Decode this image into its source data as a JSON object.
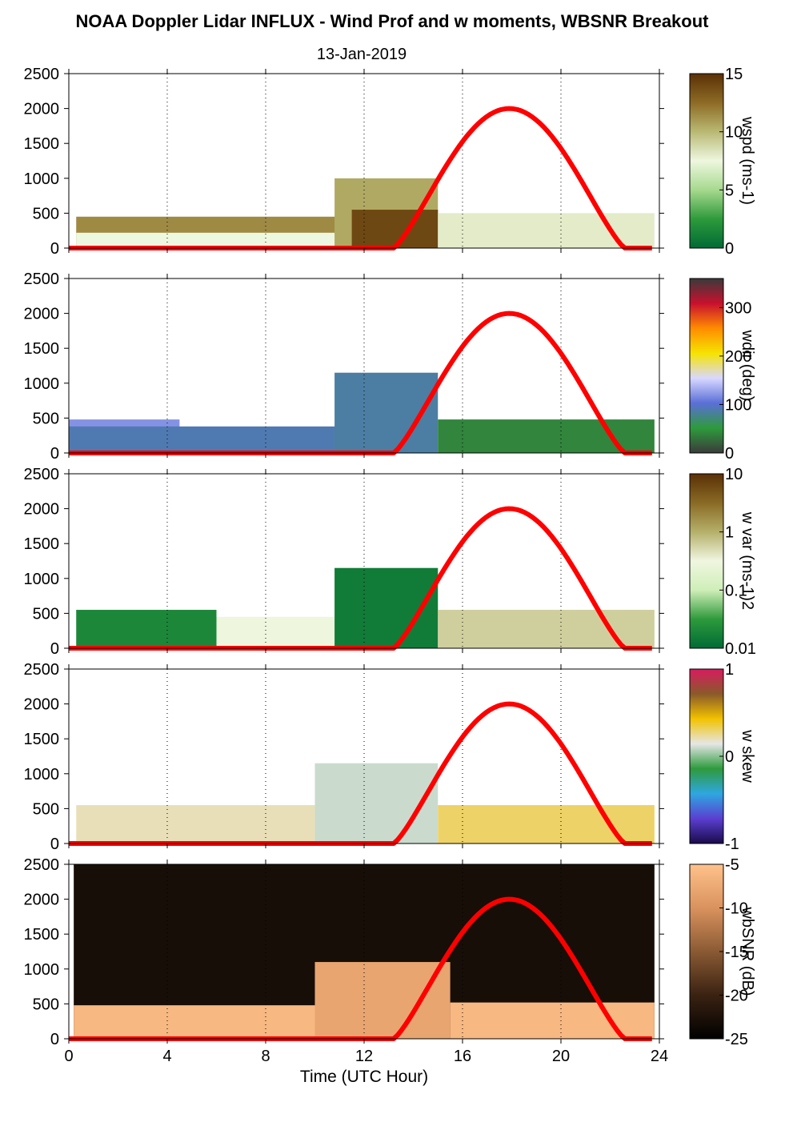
{
  "title": "NOAA Doppler Lidar INFLUX - Wind Prof and w moments, WBSNR Breakout",
  "subtitle": "13-Jan-2019",
  "colors": {
    "sun_curve": "#ff0000",
    "wspd_scale": [
      "#006b35",
      "#2e9a3c",
      "#a6d98e",
      "#eef7df",
      "#b9b973",
      "#8d6b25",
      "#5a3006"
    ],
    "wdir_scale": [
      "#3b3b3b",
      "#2e9a3c",
      "#5a6fd8",
      "#d8d8ff",
      "#f6e300",
      "#ff8c00",
      "#c8102e",
      "#3a3a3a"
    ],
    "wvar_scale": [
      "#006b35",
      "#2e9a3c",
      "#cfeeb8",
      "#f0f6e0",
      "#b5b06a",
      "#8a6a25",
      "#5a3006"
    ],
    "wskew_scale": [
      "#1a0b4a",
      "#5b3fd1",
      "#2ea7e0",
      "#2e9a3c",
      "#e6e6e6",
      "#f2c200",
      "#8a5a2a",
      "#d81b60"
    ],
    "wbsnr_scale": [
      "#000000",
      "#3a2212",
      "#8a5a34",
      "#d9925e",
      "#ffc28a"
    ]
  },
  "chart_data": [
    {
      "type": "heatmap",
      "title": "",
      "xlabel": "Time (UTC Hour)",
      "ylabel": "",
      "xlim": [
        0,
        24
      ],
      "ylim": [
        0,
        2500
      ],
      "xticks": [
        "0",
        "4",
        "8",
        "12",
        "16",
        "20",
        "24"
      ],
      "yticks": [
        "0",
        "500",
        "1000",
        "1500",
        "2000",
        "2500"
      ],
      "colorbar": {
        "label": "wspd (ms-1)",
        "ticks": [
          "0",
          "5",
          "10",
          "15"
        ],
        "range": [
          0,
          15
        ]
      },
      "grid_x": true,
      "regions": [
        {
          "from": 0.3,
          "to": 13.0,
          "top": 450,
          "value": 11.5
        },
        {
          "from": 0.3,
          "to": 13.0,
          "top": 220,
          "value": 7.5
        },
        {
          "from": 10.8,
          "to": 15.0,
          "top": 1000,
          "value": 10.5
        },
        {
          "from": 11.5,
          "to": 15.0,
          "top": 550,
          "value": 14
        },
        {
          "from": 15.0,
          "to": 23.8,
          "top": 500,
          "value": 8
        }
      ],
      "sun_curve": {
        "rise": 13.2,
        "set": 22.6,
        "peak_time": 17.9,
        "peak_height": 2000
      }
    },
    {
      "type": "heatmap",
      "title": "",
      "xlabel": "Time (UTC Hour)",
      "ylabel": "",
      "xlim": [
        0,
        24
      ],
      "ylim": [
        0,
        2500
      ],
      "xticks": [
        "0",
        "4",
        "8",
        "12",
        "16",
        "20",
        "24"
      ],
      "yticks": [
        "0",
        "500",
        "1000",
        "1500",
        "2000",
        "2500"
      ],
      "colorbar": {
        "label": "wdir (deg)",
        "ticks": [
          "0",
          "100",
          "200",
          "300"
        ],
        "range": [
          0,
          360
        ]
      },
      "grid_x": true,
      "regions": [
        {
          "from": 0.0,
          "to": 4.5,
          "top": 480,
          "value": 120
        },
        {
          "from": 0.0,
          "to": 13.0,
          "top": 380,
          "value": 90
        },
        {
          "from": 10.8,
          "to": 15.0,
          "top": 1150,
          "value": 85
        },
        {
          "from": 15.0,
          "to": 23.8,
          "top": 480,
          "value": 40
        }
      ],
      "sun_curve": {
        "rise": 13.2,
        "set": 22.6,
        "peak_time": 17.9,
        "peak_height": 2000
      }
    },
    {
      "type": "heatmap",
      "title": "",
      "xlabel": "Time (UTC Hour)",
      "ylabel": "",
      "xlim": [
        0,
        24
      ],
      "ylim": [
        0,
        2500
      ],
      "xticks": [
        "0",
        "4",
        "8",
        "12",
        "16",
        "20",
        "24"
      ],
      "yticks": [
        "0",
        "500",
        "1000",
        "1500",
        "2000",
        "2500"
      ],
      "colorbar": {
        "label": "w var (ms-1)2",
        "ticks": [
          "0.01",
          "0.1",
          "1",
          "10"
        ],
        "range": [
          0.01,
          10
        ],
        "scale": "log"
      },
      "grid_x": true,
      "regions": [
        {
          "from": 0.3,
          "to": 6.0,
          "top": 550,
          "value": 0.02
        },
        {
          "from": 6.0,
          "to": 13.0,
          "top": 450,
          "value": 0.3
        },
        {
          "from": 10.8,
          "to": 15.0,
          "top": 1150,
          "value": 0.015
        },
        {
          "from": 15.0,
          "to": 23.8,
          "top": 550,
          "value": 0.6
        }
      ],
      "sun_curve": {
        "rise": 13.2,
        "set": 22.6,
        "peak_time": 17.9,
        "peak_height": 2000
      }
    },
    {
      "type": "heatmap",
      "title": "",
      "xlabel": "Time (UTC Hour)",
      "ylabel": "",
      "xlim": [
        0,
        24
      ],
      "ylim": [
        0,
        2500
      ],
      "xticks": [
        "0",
        "4",
        "8",
        "12",
        "16",
        "20",
        "24"
      ],
      "yticks": [
        "0",
        "500",
        "1000",
        "1500",
        "2000",
        "2500"
      ],
      "colorbar": {
        "label": "w skew",
        "ticks": [
          "-1",
          "0",
          "1"
        ],
        "range": [
          -1,
          1
        ]
      },
      "grid_x": true,
      "regions": [
        {
          "from": 0.3,
          "to": 10.0,
          "top": 550,
          "value": 0.2
        },
        {
          "from": 10.0,
          "to": 15.0,
          "top": 1150,
          "value": 0.1
        },
        {
          "from": 15.0,
          "to": 23.8,
          "top": 550,
          "value": 0.3
        }
      ],
      "sun_curve": {
        "rise": 13.2,
        "set": 22.6,
        "peak_time": 17.9,
        "peak_height": 2000
      }
    },
    {
      "type": "heatmap",
      "title": "",
      "xlabel": "Time (UTC Hour)",
      "ylabel": "",
      "xlim": [
        0,
        24
      ],
      "ylim": [
        0,
        2500
      ],
      "xticks": [
        "0",
        "4",
        "8",
        "12",
        "16",
        "20",
        "24"
      ],
      "yticks": [
        "0",
        "500",
        "1000",
        "1500",
        "2000",
        "2500"
      ],
      "colorbar": {
        "label": "wbSNR (dB)",
        "ticks": [
          "-25",
          "-20",
          "-15",
          "-10",
          "-5"
        ],
        "range": [
          -25,
          -5
        ]
      },
      "grid_x": true,
      "regions": [
        {
          "from": 0.2,
          "to": 23.8,
          "top": 2500,
          "value": -23
        },
        {
          "from": 0.2,
          "to": 10.0,
          "top": 480,
          "value": -6
        },
        {
          "from": 10.0,
          "to": 15.5,
          "top": 1100,
          "value": -8
        },
        {
          "from": 15.5,
          "to": 23.8,
          "top": 520,
          "value": -6
        }
      ],
      "sun_curve": {
        "rise": 13.2,
        "set": 22.6,
        "peak_time": 17.9,
        "peak_height": 2000
      }
    }
  ]
}
